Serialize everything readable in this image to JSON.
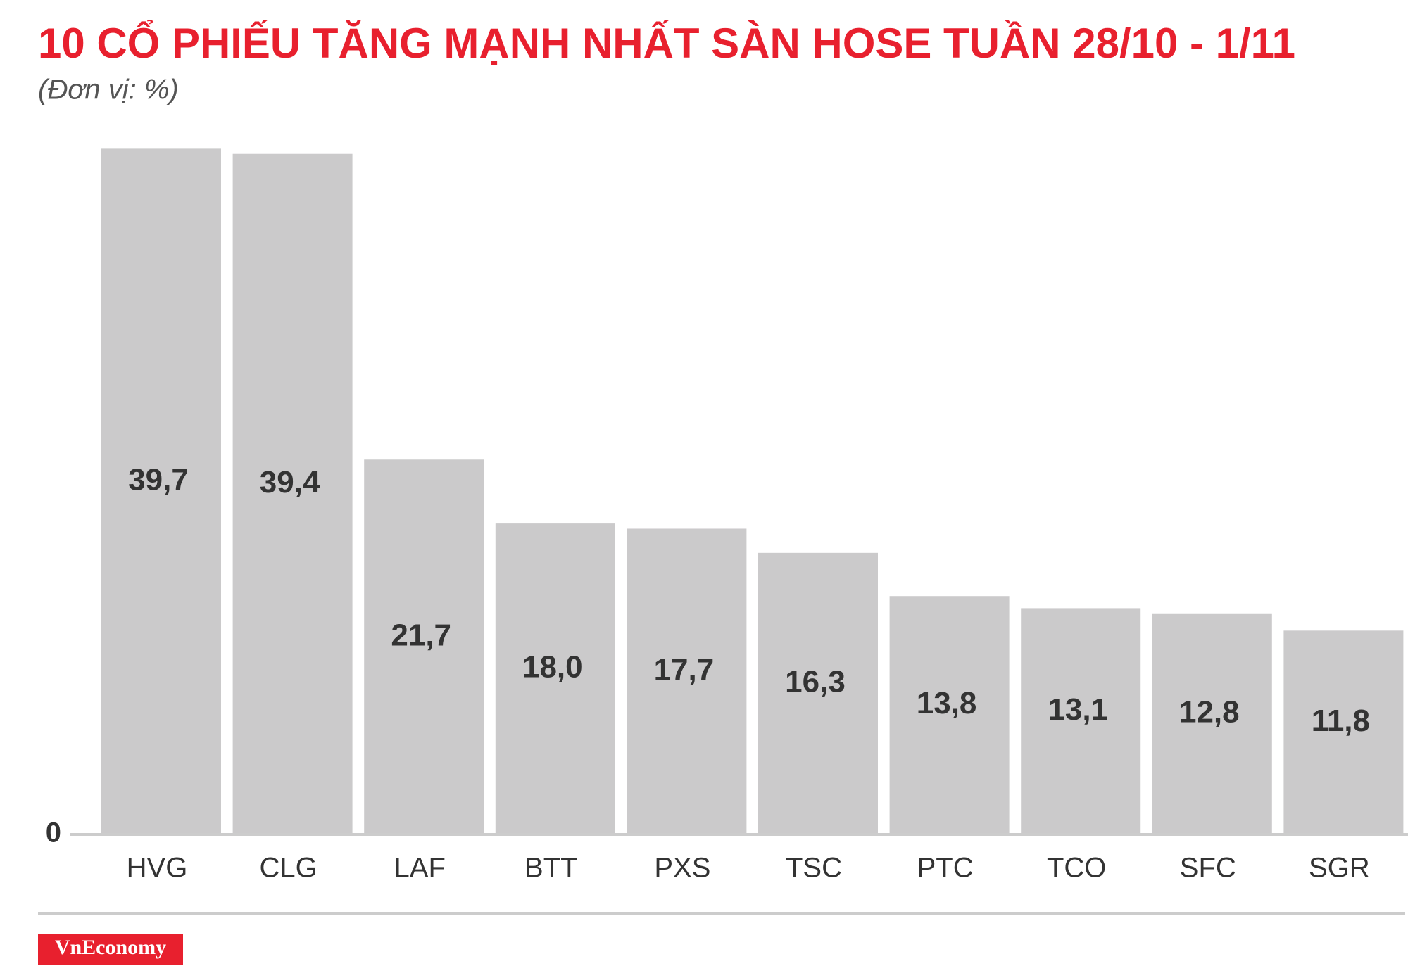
{
  "chart_data": {
    "type": "bar",
    "title": "10 CỔ PHIẾU TĂNG MẠNH NHẤT SÀN HOSE TUẦN 28/10 - 1/11",
    "subtitle": "(Đơn vị: %)",
    "categories": [
      "HVG",
      "CLG",
      "LAF",
      "BTT",
      "PXS",
      "TSC",
      "PTC",
      "TCO",
      "SFC",
      "SGR"
    ],
    "values": [
      39.7,
      39.4,
      21.7,
      18.0,
      17.7,
      16.3,
      13.8,
      13.1,
      12.8,
      11.8
    ],
    "value_labels": [
      "39,7",
      "39,4",
      "21,7",
      "18,0",
      "17,7",
      "16,3",
      "13,8",
      "13,1",
      "12,8",
      "11,8"
    ],
    "color": "#cbcacb",
    "ylim": [
      0,
      40
    ],
    "yticks": [
      0
    ],
    "grid": false,
    "logo": "VnEconomy"
  }
}
